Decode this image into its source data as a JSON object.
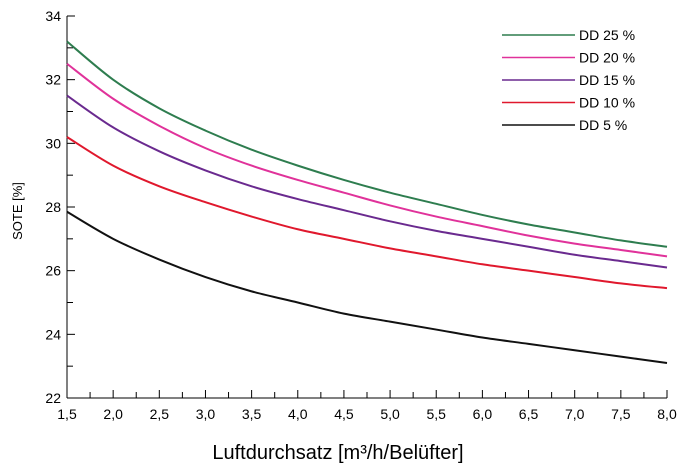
{
  "chart_data": {
    "type": "line",
    "xlabel": "Luftdurchsatz [m³/h/Belüfter]",
    "ylabel": "SOTE [%]",
    "xlim": [
      1.5,
      8.0
    ],
    "ylim": [
      22,
      34
    ],
    "x_ticks": [
      "1,5",
      "2,0",
      "2,5",
      "3,0",
      "3,5",
      "4,0",
      "4,5",
      "5,0",
      "5,5",
      "6,0",
      "6,5",
      "7,0",
      "7,5",
      "8,0"
    ],
    "y_ticks": [
      "22",
      "24",
      "26",
      "28",
      "30",
      "32",
      "34"
    ],
    "grid": false,
    "legend_position": "top-right",
    "x": [
      1.5,
      2.0,
      2.5,
      3.0,
      3.5,
      4.0,
      4.5,
      5.0,
      5.5,
      6.0,
      6.5,
      7.0,
      7.5,
      8.0
    ],
    "series": [
      {
        "name": "DD 25 %",
        "color": "#2e7d4f",
        "values": [
          33.2,
          32.0,
          31.1,
          30.4,
          29.8,
          29.3,
          28.85,
          28.45,
          28.1,
          27.75,
          27.45,
          27.2,
          26.95,
          26.75
        ]
      },
      {
        "name": "DD 20 %",
        "color": "#e0329a",
        "values": [
          32.5,
          31.4,
          30.55,
          29.85,
          29.3,
          28.85,
          28.45,
          28.05,
          27.7,
          27.4,
          27.1,
          26.85,
          26.65,
          26.45
        ]
      },
      {
        "name": "DD 15 %",
        "color": "#6a2a8f",
        "values": [
          31.5,
          30.5,
          29.75,
          29.15,
          28.65,
          28.25,
          27.9,
          27.55,
          27.25,
          27.0,
          26.75,
          26.5,
          26.3,
          26.1
        ]
      },
      {
        "name": "DD 10 %",
        "color": "#e0182d",
        "values": [
          30.2,
          29.3,
          28.65,
          28.15,
          27.7,
          27.3,
          27.0,
          26.7,
          26.45,
          26.2,
          26.0,
          25.8,
          25.6,
          25.45
        ]
      },
      {
        "name": "DD 5 %",
        "color": "#111111",
        "values": [
          27.85,
          27.0,
          26.35,
          25.8,
          25.35,
          25.0,
          24.65,
          24.4,
          24.15,
          23.9,
          23.7,
          23.5,
          23.3,
          23.1
        ]
      }
    ]
  }
}
